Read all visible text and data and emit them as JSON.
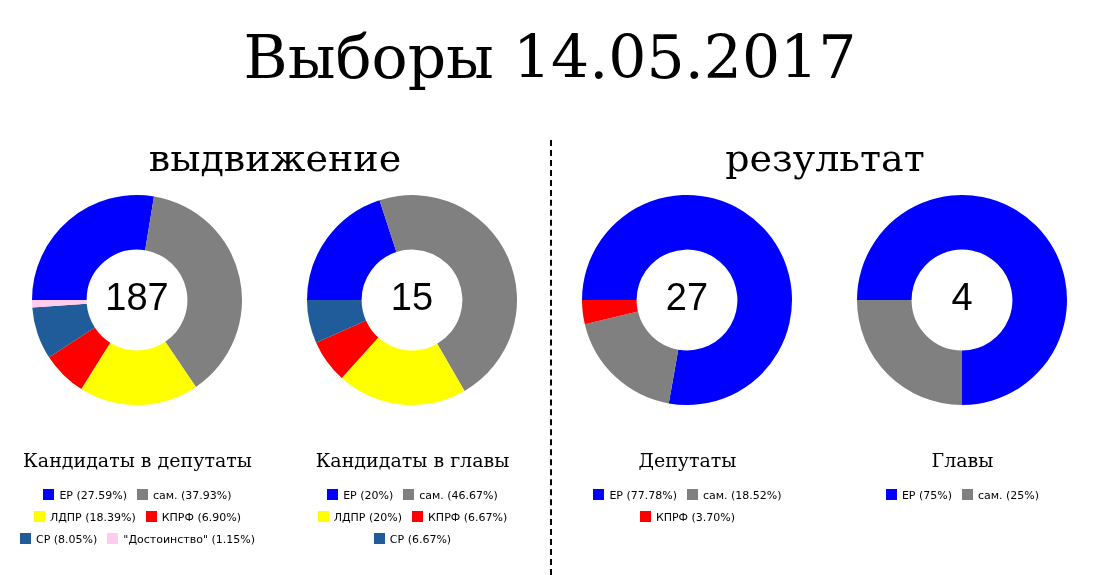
{
  "chart_data": [
    {
      "type": "donut",
      "title": "Выборы 14.05.2017",
      "subtitle": "выдвижение",
      "xlabel": "Кандидаты в депутаты",
      "annotations": [
        "187"
      ],
      "legend": "bottom",
      "categories": [
        "ЕР (27.59%)",
        "сам. (37.93%)",
        "ЛДПР (18.39%)",
        "КПРФ (6.90%)",
        "СР (8.05%)",
        "\"Достоинство\" (1.15%)"
      ],
      "values": [
        27.59,
        37.93,
        18.39,
        6.9,
        8.05,
        1.15
      ],
      "colors": [
        "#0000ff",
        "#808080",
        "#ffff00",
        "#ff0000",
        "#1f5c99",
        "#ffccee"
      ]
    },
    {
      "type": "donut",
      "xlabel": "Кандидаты в главы",
      "annotations": [
        "15"
      ],
      "legend": "bottom",
      "categories": [
        "ЕР (20%)",
        "сам. (46.67%)",
        "ЛДПР (20%)",
        "КПРФ (6.67%)",
        "СР (6.67%)"
      ],
      "values": [
        20,
        46.67,
        20,
        6.67,
        6.67
      ],
      "colors": [
        "#0000ff",
        "#808080",
        "#ffff00",
        "#ff0000",
        "#1f5c99"
      ]
    },
    {
      "type": "donut",
      "subtitle": "результат",
      "xlabel": "Депутаты",
      "annotations": [
        "27"
      ],
      "legend": "bottom",
      "categories": [
        "ЕР (77.78%)",
        "сам. (18.52%)",
        "КПРФ (3.70%)"
      ],
      "values": [
        77.78,
        18.52,
        3.7
      ],
      "colors": [
        "#0000ff",
        "#808080",
        "#ff0000"
      ]
    },
    {
      "type": "donut",
      "xlabel": "Главы",
      "annotations": [
        "4"
      ],
      "legend": "bottom",
      "categories": [
        "ЕР (75%)",
        "сам. (25%)"
      ],
      "values": [
        75,
        25
      ],
      "colors": [
        "#0000ff",
        "#808080"
      ]
    }
  ]
}
